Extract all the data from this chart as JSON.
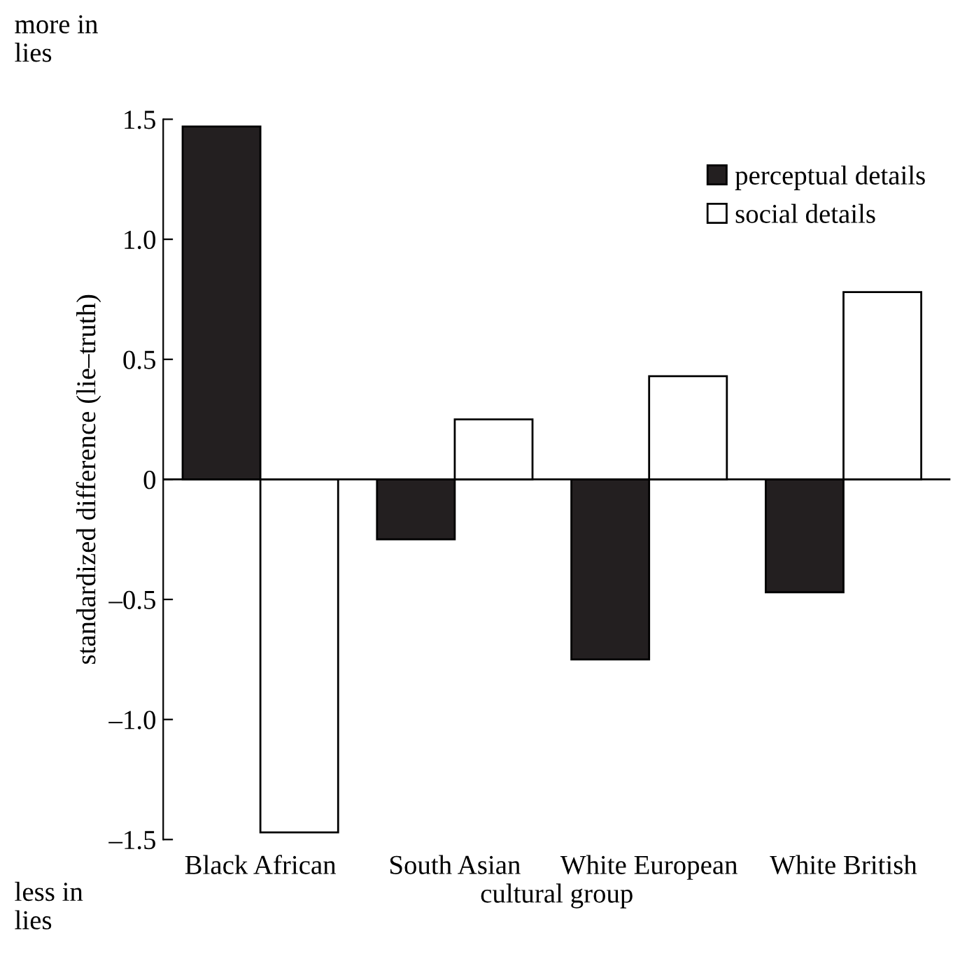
{
  "chart_data": {
    "type": "bar",
    "categories": [
      "Black African",
      "South Asian",
      "White European",
      "White British"
    ],
    "series": [
      {
        "name": "perceptual details",
        "color": "#231f20",
        "values": [
          1.47,
          -0.25,
          -0.75,
          -0.47
        ]
      },
      {
        "name": "social details",
        "color": "#ffffff",
        "values": [
          -1.47,
          0.25,
          0.43,
          0.78
        ]
      }
    ],
    "xlabel": "cultural group",
    "ylabel": "standardized difference (lie–truth)",
    "ylim": [
      -1.5,
      1.5
    ],
    "yticks": [
      {
        "value": -1.5,
        "label": "–1.5"
      },
      {
        "value": -1.0,
        "label": "–1.0"
      },
      {
        "value": -0.5,
        "label": "–0.5"
      },
      0,
      0.5,
      {
        "value": 1.0,
        "label": "1.0"
      },
      1.5
    ],
    "ref_lines": [
      {
        "axis": "y",
        "value": 0,
        "label": null,
        "color": "#000000"
      }
    ],
    "annotations": [
      "more in\nlies",
      "less in\nlies"
    ],
    "legend": "top right",
    "grid": false
  }
}
